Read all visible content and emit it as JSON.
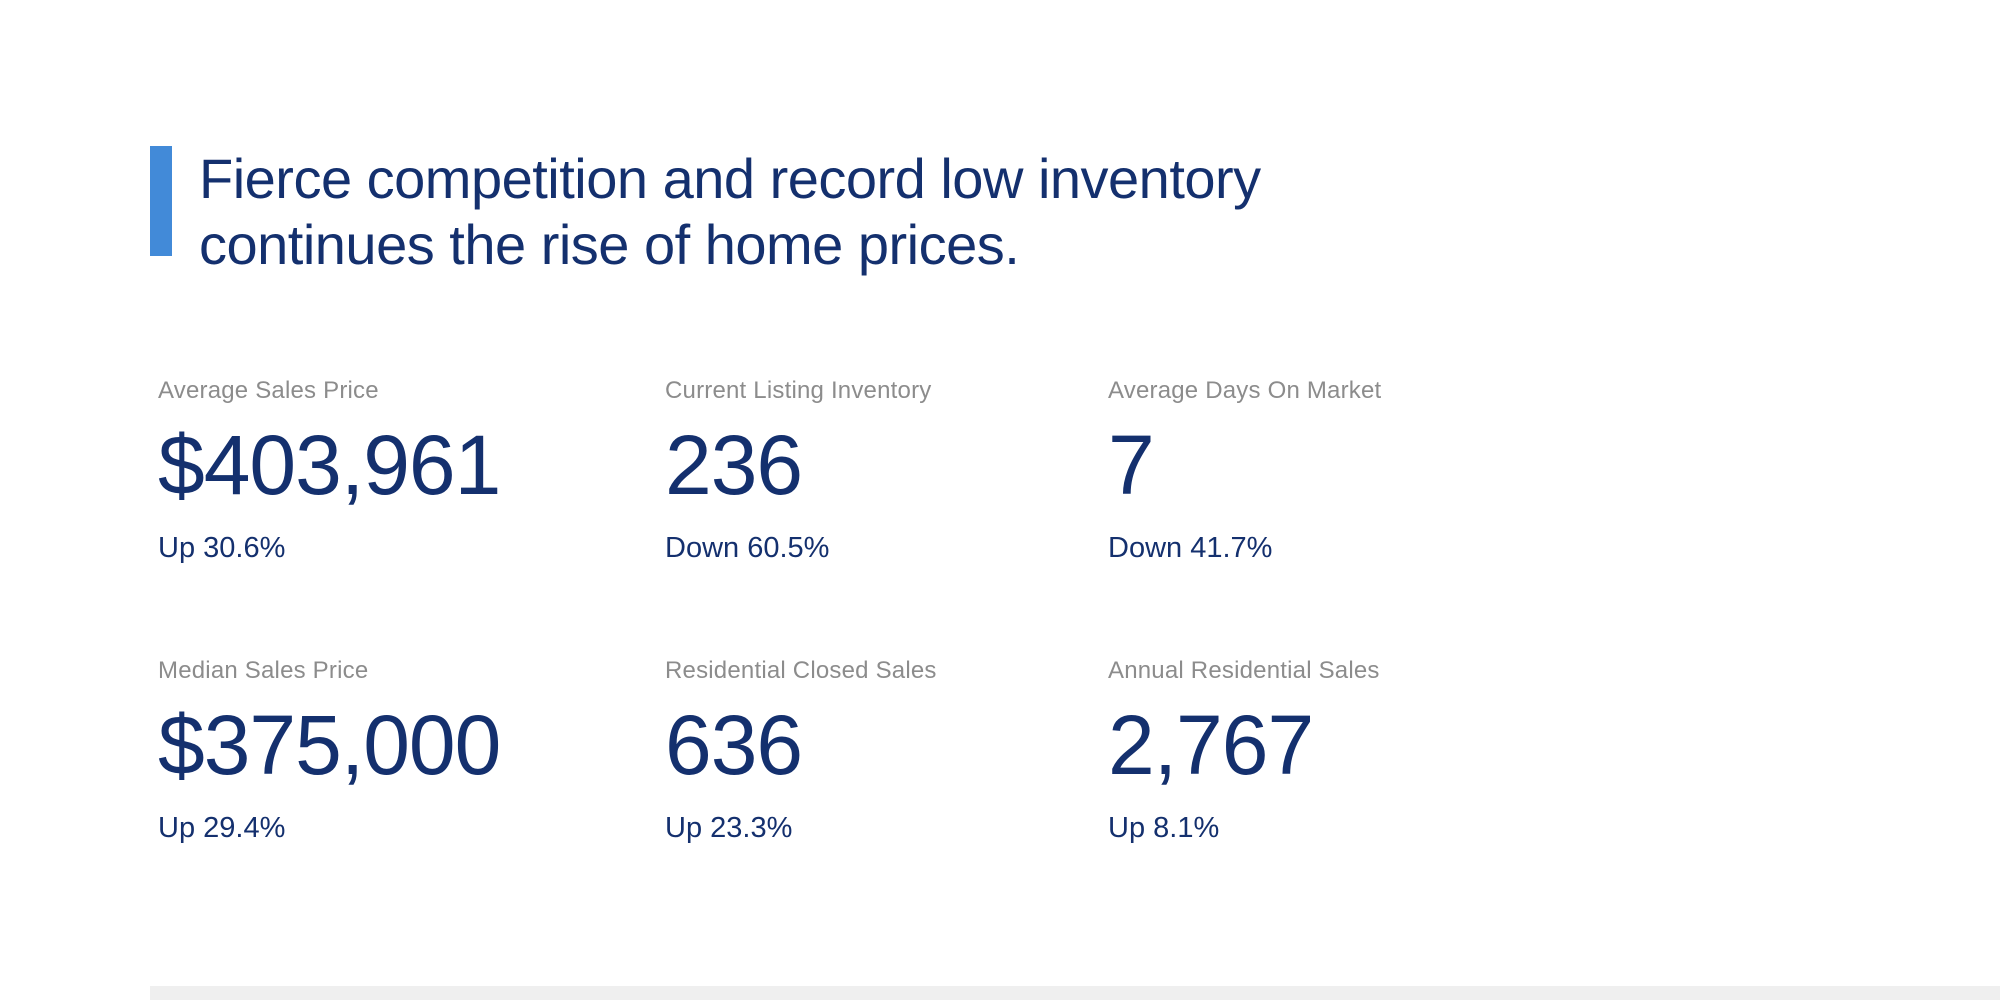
{
  "theme": {
    "background": "#FFFFFF",
    "navy": "#14306E",
    "accent_blue": "#428AD8",
    "label_gray": "#8C8C8C",
    "footer_gray": "#EFEFEF"
  },
  "headline": {
    "line1": "Fierce competition and record low inventory",
    "line2": "continues the rise of home prices."
  },
  "stats": [
    {
      "label": "Average Sales Price",
      "value": "$403,961",
      "change": "Up 30.6%",
      "direction": "up"
    },
    {
      "label": "Current Listing Inventory",
      "value": "236",
      "change": "Down 60.5%",
      "direction": "down"
    },
    {
      "label": "Average Days On Market",
      "value": "7",
      "change": "Down 41.7%",
      "direction": "down"
    },
    {
      "label": "Median Sales Price",
      "value": "$375,000",
      "change": "Up 29.4%",
      "direction": "up"
    },
    {
      "label": "Residential Closed Sales",
      "value": "636",
      "change": "Up 23.3%",
      "direction": "up"
    },
    {
      "label": "Annual Residential Sales",
      "value": "2,767",
      "change": "Up 8.1%",
      "direction": "up"
    }
  ]
}
